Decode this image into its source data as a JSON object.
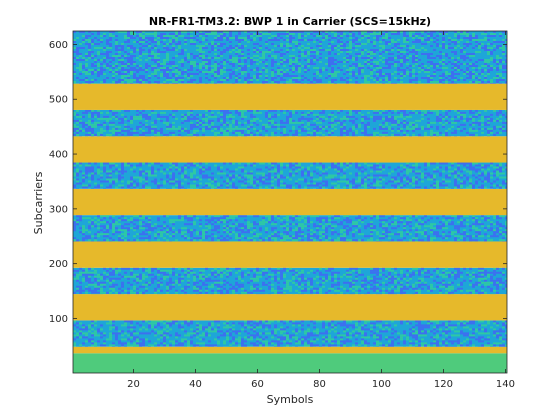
{
  "chart_data": {
    "type": "heatmap",
    "title": "NR-FR1-TM3.2: BWP 1 in Carrier (SCS=15kHz)",
    "xlabel": "Symbols",
    "ylabel": "Subcarriers",
    "xlim": [
      0.5,
      140.5
    ],
    "ylim": [
      0.5,
      624.5
    ],
    "xticks": [
      20,
      40,
      60,
      80,
      100,
      120,
      140
    ],
    "yticks": [
      100,
      200,
      300,
      400,
      500,
      600
    ],
    "grid": false,
    "legend": "none",
    "colors": {
      "data_noise_low": "#3d6ff0",
      "data_noise_mid": "#1ea6d8",
      "data_noise_high": "#2ec8a4",
      "unallocated": "#e6b92b",
      "low_band": "#4fcb7c"
    },
    "bands": [
      {
        "kind": "low_band",
        "y0": 0.5,
        "y1": 36.5
      },
      {
        "kind": "unallocated",
        "y0": 36.5,
        "y1": 48.5
      },
      {
        "kind": "data_noise",
        "y0": 48.5,
        "y1": 96.5
      },
      {
        "kind": "unallocated",
        "y0": 96.5,
        "y1": 144.5
      },
      {
        "kind": "data_noise",
        "y0": 144.5,
        "y1": 192.5
      },
      {
        "kind": "unallocated",
        "y0": 192.5,
        "y1": 240.5
      },
      {
        "kind": "data_noise",
        "y0": 240.5,
        "y1": 288.5
      },
      {
        "kind": "unallocated",
        "y0": 288.5,
        "y1": 336.5
      },
      {
        "kind": "data_noise",
        "y0": 336.5,
        "y1": 384.5
      },
      {
        "kind": "unallocated",
        "y0": 384.5,
        "y1": 432.5
      },
      {
        "kind": "data_noise",
        "y0": 432.5,
        "y1": 480.5
      },
      {
        "kind": "unallocated",
        "y0": 480.5,
        "y1": 528.5
      },
      {
        "kind": "data_noise",
        "y0": 528.5,
        "y1": 624.5
      }
    ]
  }
}
